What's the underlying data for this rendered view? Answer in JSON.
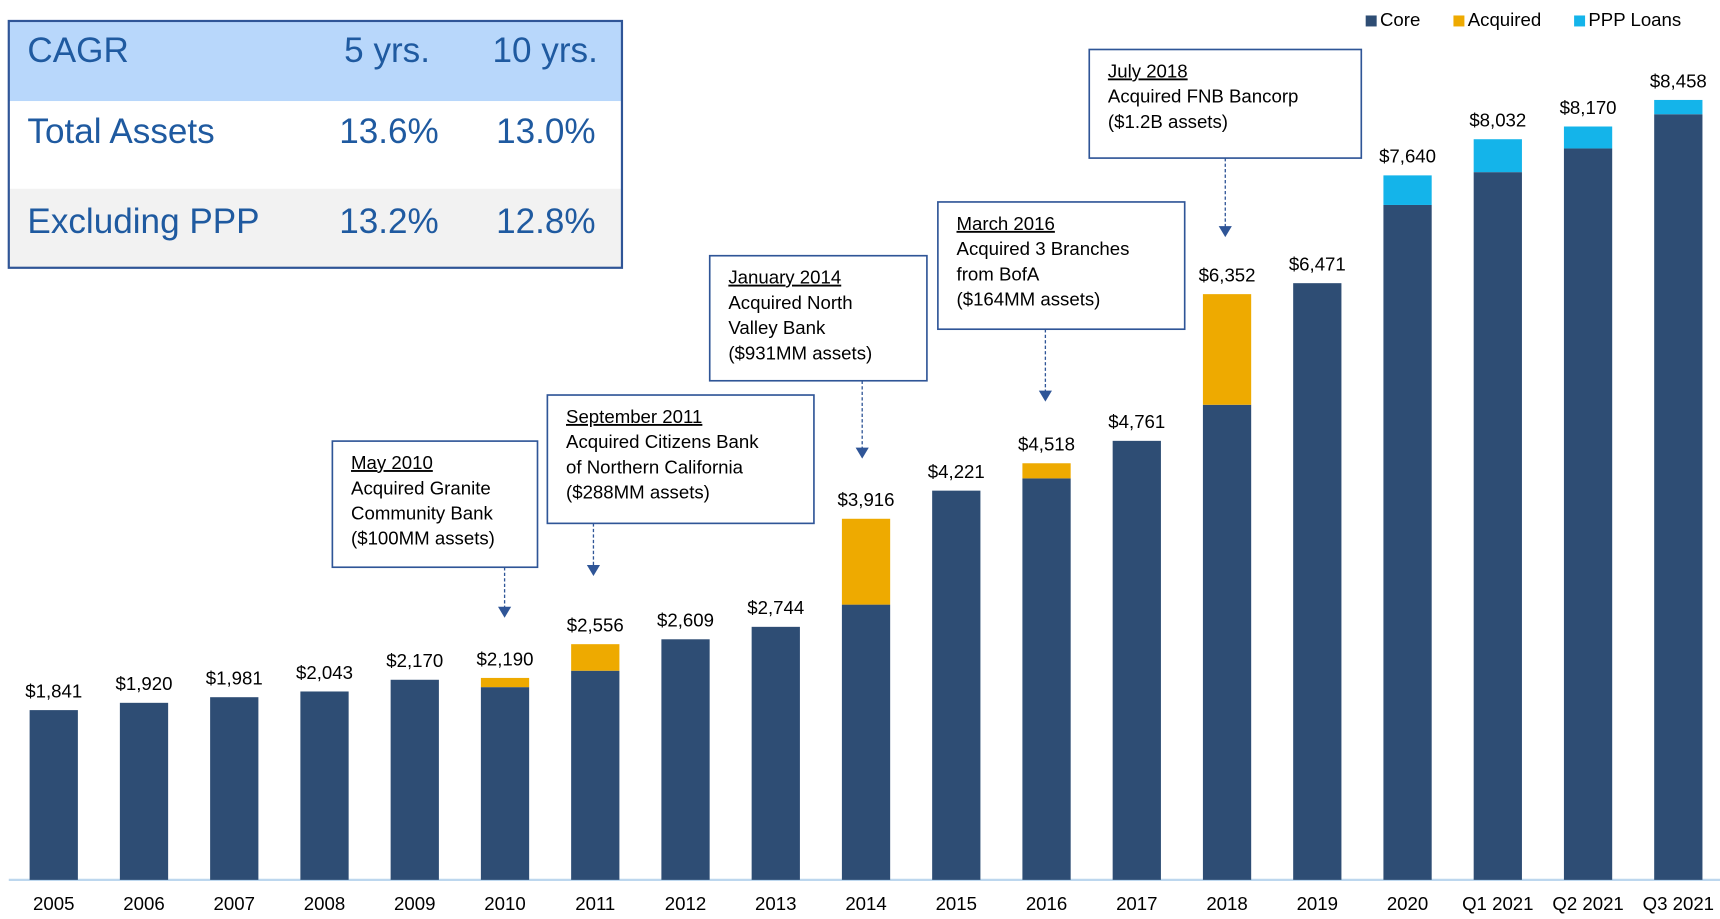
{
  "chart_data": {
    "type": "stacked_bar",
    "categories": [
      "2005",
      "2006",
      "2007",
      "2008",
      "2009",
      "2010",
      "2011",
      "2012",
      "2013",
      "2014",
      "2015",
      "2016",
      "2017",
      "2018",
      "2019",
      "2020",
      "Q1 2021",
      "Q2 2021",
      "Q3 2021"
    ],
    "series": [
      {
        "name": "Core",
        "color": "#2e4d74",
        "values": [
          1841,
          1920,
          1981,
          2043,
          2170,
          2090,
          2268,
          2609,
          2744,
          2985,
          4221,
          4354,
          4761,
          5152,
          6471,
          7319,
          7675,
          7932,
          8303
        ]
      },
      {
        "name": "Acquired",
        "color": "#eeaa00",
        "values": [
          null,
          null,
          null,
          null,
          null,
          100,
          288,
          null,
          null,
          931,
          null,
          164,
          null,
          1200,
          null,
          null,
          null,
          null,
          null
        ]
      },
      {
        "name": "PPP Loans",
        "color": "#14b4ea",
        "values": [
          null,
          null,
          null,
          null,
          null,
          null,
          null,
          null,
          null,
          null,
          null,
          null,
          null,
          null,
          null,
          321,
          357,
          238,
          155
        ]
      }
    ],
    "totals": [
      1841,
      1920,
      1981,
      2043,
      2170,
      2190,
      2556,
      2609,
      2744,
      3916,
      4221,
      4518,
      4761,
      6352,
      6471,
      7640,
      8032,
      8170,
      8458
    ],
    "total_labels": [
      "$1,841",
      "$1,920",
      "$1,981",
      "$2,043",
      "$2,170",
      "$2,190",
      "$2,556",
      "$2,609",
      "$2,744",
      "$3,916",
      "$4,221",
      "$4,518",
      "$4,761",
      "$6,352",
      "$6,471",
      "$7,640",
      "$8,032",
      "$8,170",
      "$8,458"
    ],
    "annotations": [
      {
        "date": "May 2010",
        "lines": [
          "Acquired Granite",
          "Community Bank",
          "($100MM assets)"
        ]
      },
      {
        "date": "September 2011",
        "lines": [
          "Acquired Citizens Bank",
          "of Northern California",
          "($288MM assets)"
        ]
      },
      {
        "date": "January 2014",
        "lines": [
          "Acquired North",
          "Valley Bank",
          "($931MM assets)"
        ]
      },
      {
        "date": "March 2016",
        "lines": [
          "Acquired 3 Branches",
          "from BofA",
          "($164MM assets)"
        ]
      },
      {
        "date": "July 2018",
        "lines": [
          "Acquired FNB Bancorp",
          "($1.2B assets)"
        ]
      }
    ]
  },
  "cagr_table": {
    "header": [
      "CAGR",
      "5 yrs.",
      "10 yrs."
    ],
    "rows": [
      [
        "Total Assets",
        "13.6%",
        "13.0%"
      ],
      [
        "Excluding PPP",
        "13.2%",
        "12.8%"
      ]
    ]
  }
}
